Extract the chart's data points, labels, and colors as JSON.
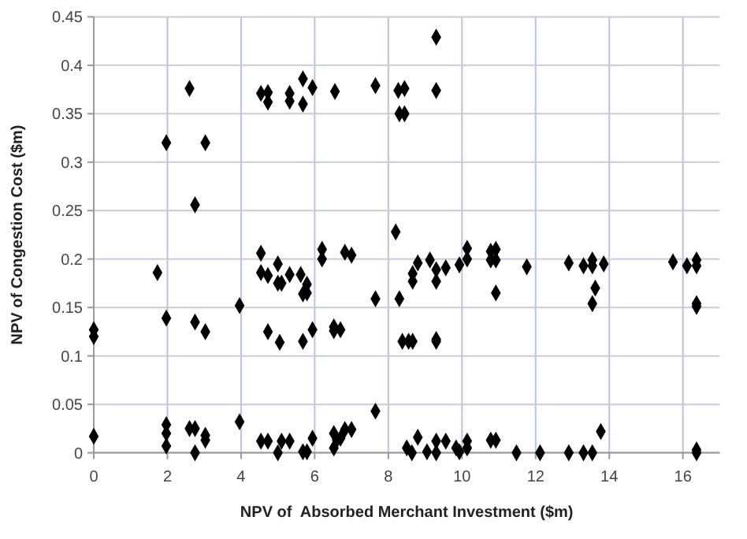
{
  "chart_data": {
    "type": "scatter",
    "xlabel": "NPV of  Absorbed Merchant Investment ($m)",
    "ylabel": "NPV of Congestion Cost ($m)",
    "xlim": [
      0,
      17
    ],
    "xticks": [
      0,
      2,
      4,
      6,
      8,
      10,
      12,
      14,
      16
    ],
    "ylim": [
      0,
      0.45
    ],
    "yticks": [
      0,
      0.05,
      0.1,
      0.15,
      0.2,
      0.25,
      0.3,
      0.35,
      0.4,
      0.45
    ],
    "grid": true,
    "marker": "diamond",
    "series": [
      {
        "color": "#000000",
        "x": [
          0,
          0,
          0,
          1.73,
          1.97,
          1.97,
          1.97,
          1.97,
          1.97,
          2.6,
          2.75,
          2.75,
          2.6,
          2.75,
          2.75,
          3.03,
          3.03,
          3.03,
          3.03,
          3.96,
          3.96,
          4.54,
          4.73,
          4.73,
          5.32,
          5.32,
          4.54,
          4.54,
          4.73,
          5.0,
          5.0,
          5.1,
          5.32,
          4.73,
          5.05,
          4.54,
          4.73,
          5.0,
          5.1,
          5.32,
          5.68,
          5.68,
          5.94,
          6.55,
          7.65,
          8.27,
          8.44,
          8.3,
          8.44,
          9.3,
          9.3,
          5.62,
          5.79,
          5.79,
          5.68,
          6.2,
          6.2,
          6.82,
          7.0,
          7.65,
          8.2,
          8.3,
          8.66,
          8.66,
          8.8,
          9.13,
          9.3,
          9.3,
          9.56,
          9.93,
          10.14,
          10.14,
          10.78,
          10.92,
          10.78,
          10.92,
          10.92,
          5.68,
          5.94,
          6.52,
          6.52,
          6.7,
          8.38,
          8.55,
          8.66,
          9.3,
          9.3,
          5.68,
          5.79,
          5.94,
          6.52,
          6.52,
          6.6,
          6.7,
          6.82,
          7.0,
          7.65,
          8.5,
          8.64,
          8.8,
          9.05,
          9.3,
          9.3,
          9.56,
          9.84,
          9.93,
          10.14,
          10.14,
          10.78,
          10.92,
          11.48,
          11.76,
          12.9,
          13.3,
          13.54,
          13.54,
          13.85,
          13.62,
          13.54,
          15.73,
          16.11,
          16.37,
          16.37,
          16.37,
          16.37,
          13.77,
          12.12,
          12.9,
          13.3,
          13.54,
          16.37,
          16.37
        ],
        "values": [
          0.127,
          0.12,
          0.017,
          0.186,
          0.32,
          0.139,
          0.029,
          0.02,
          0.007,
          0.376,
          0.256,
          0.135,
          0.025,
          0.025,
          0,
          0.32,
          0.125,
          0.018,
          0.013,
          0.152,
          0.032,
          0.371,
          0.372,
          0.362,
          0.371,
          0.363,
          0.206,
          0.186,
          0.183,
          0.195,
          0.175,
          0.175,
          0.184,
          0.125,
          0.114,
          0.012,
          0.012,
          0,
          0.012,
          0.012,
          0.386,
          0.36,
          0.377,
          0.373,
          0.379,
          0.374,
          0.376,
          0.35,
          0.35,
          0.429,
          0.374,
          0.184,
          0.174,
          0.165,
          0.164,
          0.21,
          0.2,
          0.207,
          0.204,
          0.159,
          0.228,
          0.159,
          0.185,
          0.177,
          0.196,
          0.199,
          0.189,
          0.177,
          0.191,
          0.194,
          0.211,
          0.2,
          0.208,
          0.21,
          0.199,
          0.199,
          0.165,
          0.115,
          0.127,
          0.13,
          0.126,
          0.127,
          0.115,
          0.115,
          0.115,
          0.117,
          0.115,
          0.001,
          0.001,
          0.015,
          0.02,
          0.005,
          0.013,
          0.015,
          0.024,
          0.024,
          0.043,
          0.005,
          0,
          0.016,
          0.001,
          0.012,
          0,
          0.012,
          0.005,
          0.001,
          0.012,
          0.005,
          0.013,
          0.013,
          0,
          0.192,
          0.196,
          0.193,
          0.199,
          0.193,
          0.195,
          0.17,
          0.154,
          0.197,
          0.193,
          0.199,
          0.193,
          0.154,
          0.151,
          0.022,
          0,
          0,
          0,
          0,
          0.003,
          0
        ]
      }
    ]
  }
}
